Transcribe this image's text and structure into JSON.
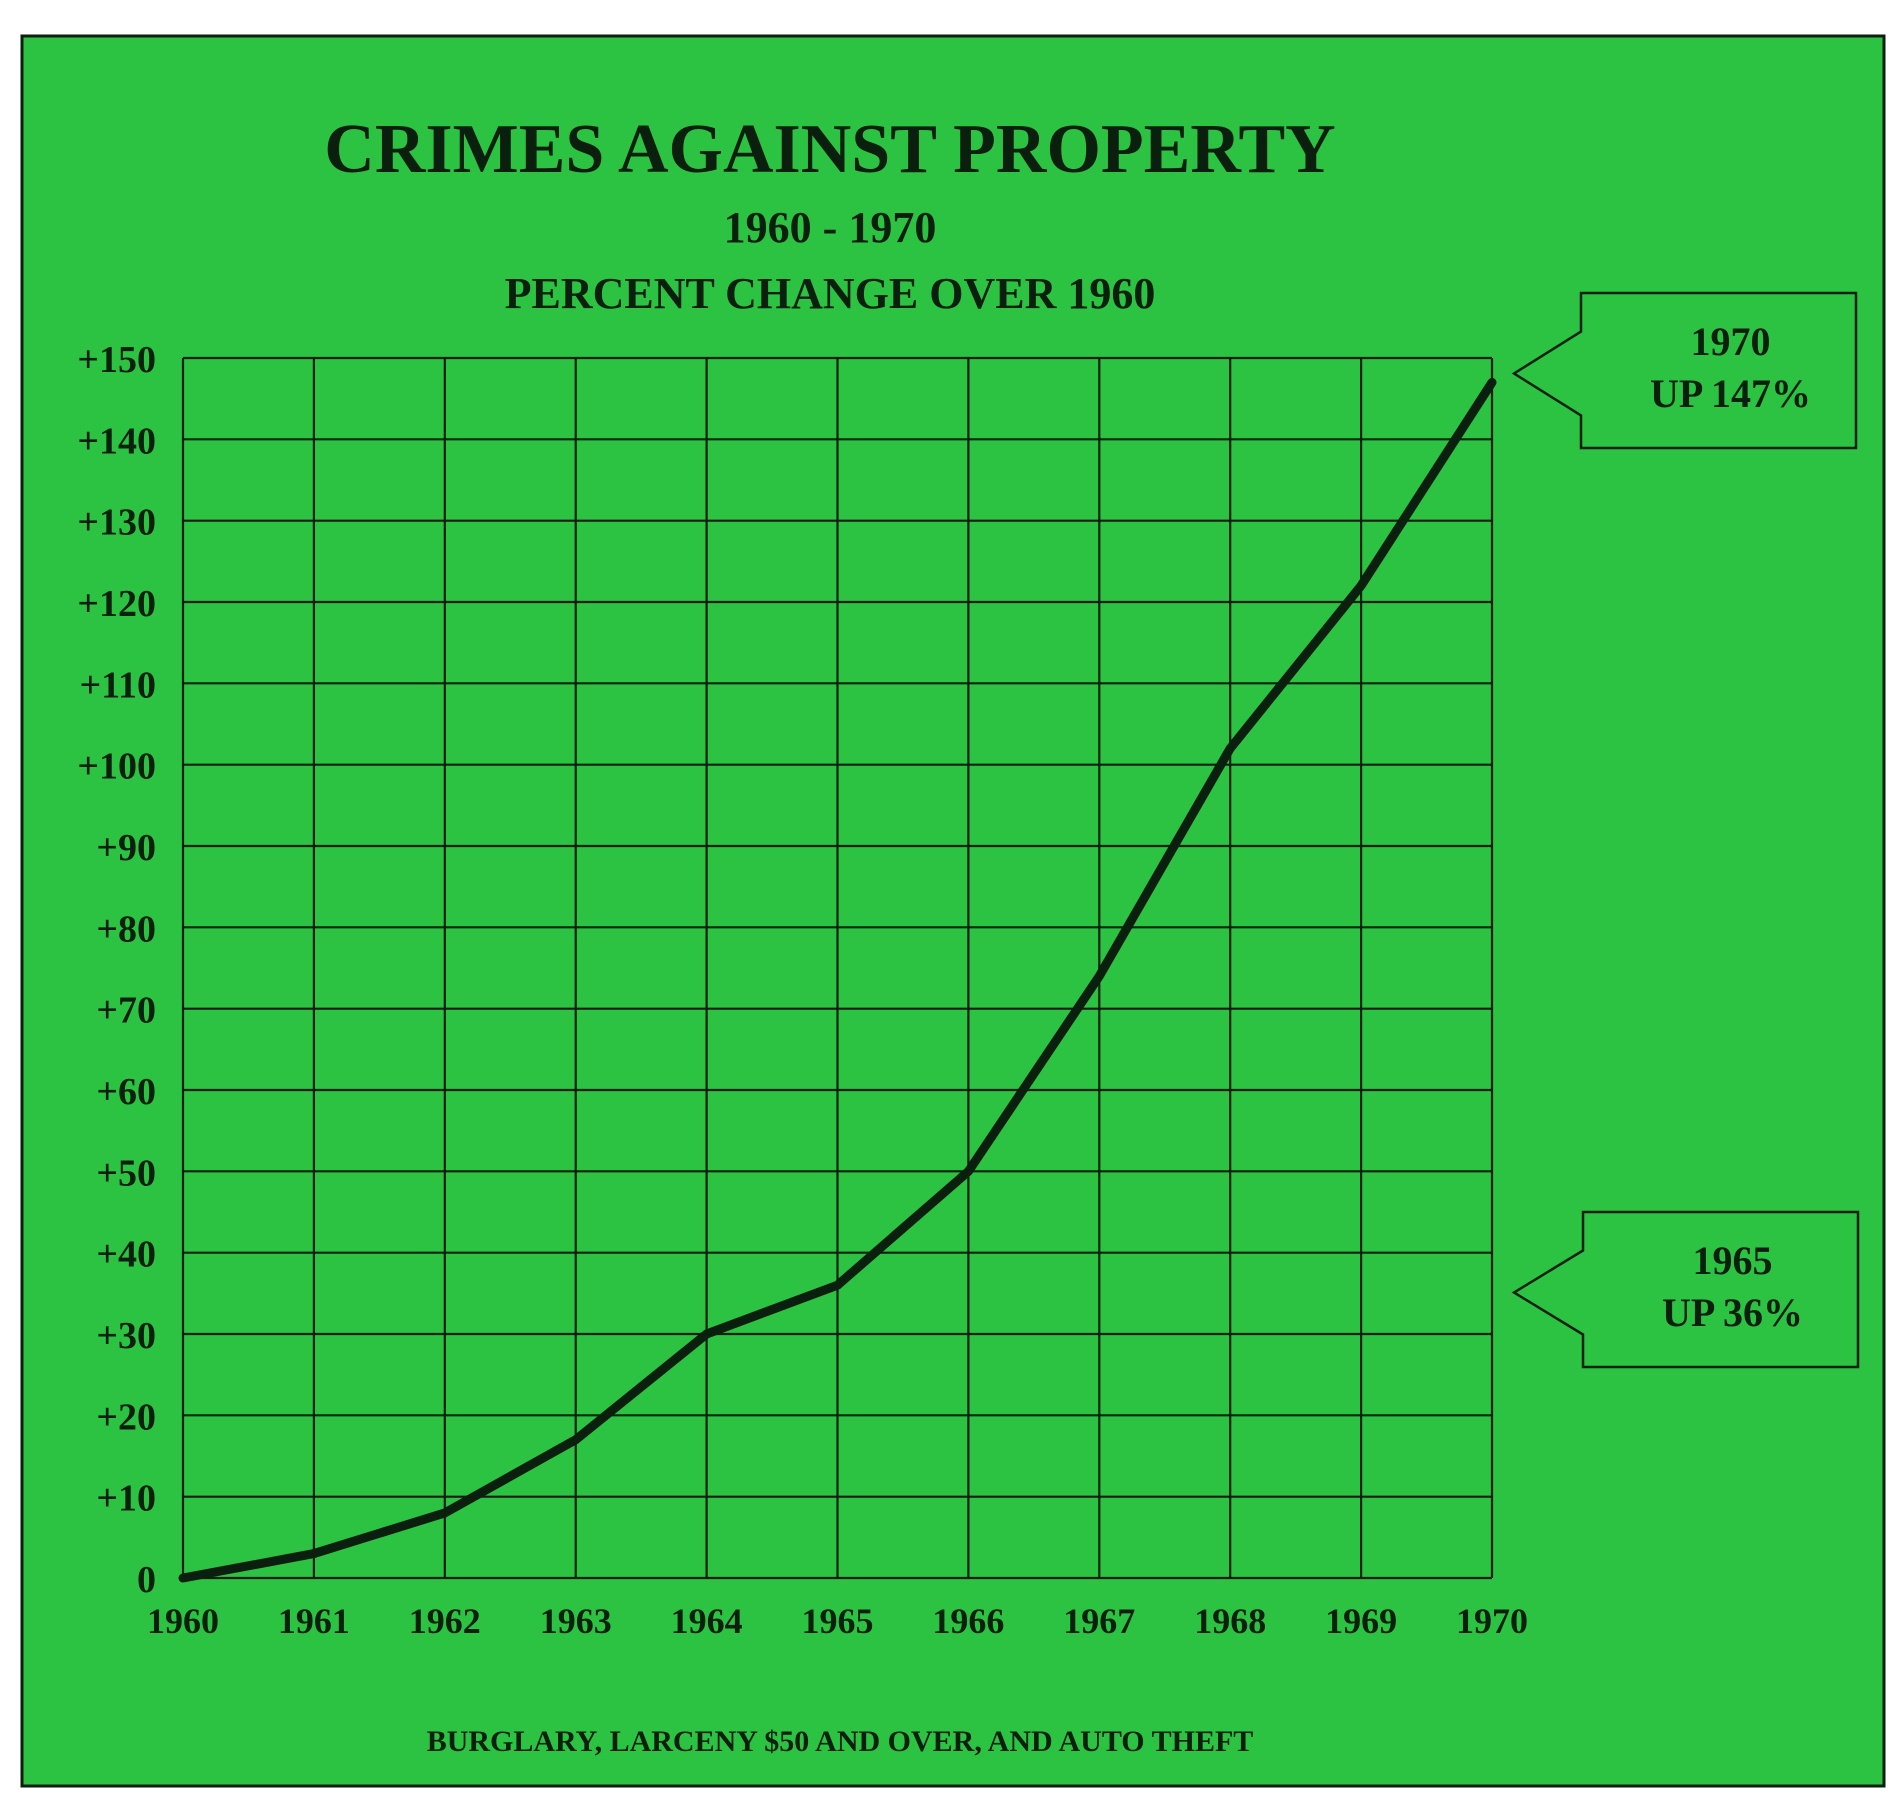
{
  "colors": {
    "background": "#2cc343",
    "ink": "#0b1f0e",
    "page": "#ffffff"
  },
  "chart_data": {
    "type": "line",
    "title": "CRIMES AGAINST PROPERTY",
    "subtitle": "1960 - 1970",
    "subtitle2": "PERCENT CHANGE OVER 1960",
    "footer": "BURGLARY, LARCENY $50 AND OVER, AND AUTO THEFT",
    "xlabel": "",
    "ylabel": "",
    "x": [
      1960,
      1961,
      1962,
      1963,
      1964,
      1965,
      1966,
      1967,
      1968,
      1969,
      1970
    ],
    "x_tick_labels": [
      "1960",
      "1961",
      "1962",
      "1963",
      "1964",
      "1965",
      "1966",
      "1967",
      "1968",
      "1969",
      "1970"
    ],
    "xlim": [
      1960,
      1970
    ],
    "ylim": [
      0,
      150
    ],
    "y_ticks": [
      0,
      10,
      20,
      30,
      40,
      50,
      60,
      70,
      80,
      90,
      100,
      110,
      120,
      130,
      140,
      150
    ],
    "y_tick_labels": [
      "0",
      "+10",
      "+20",
      "+30",
      "+40",
      "+50",
      "+60",
      "+70",
      "+80",
      "+90",
      "+100",
      "+110",
      "+120",
      "+130",
      "+140",
      "+150"
    ],
    "grid": true,
    "series": [
      {
        "values": [
          0,
          3,
          8,
          17,
          30,
          36,
          50,
          74,
          102,
          122,
          147
        ]
      }
    ],
    "annotations": [
      {
        "x": 1970,
        "y": 147,
        "lines": [
          "1970",
          "UP 147%"
        ]
      },
      {
        "x": 1965,
        "y": 36,
        "lines": [
          "1965",
          "UP 36%"
        ]
      }
    ]
  }
}
